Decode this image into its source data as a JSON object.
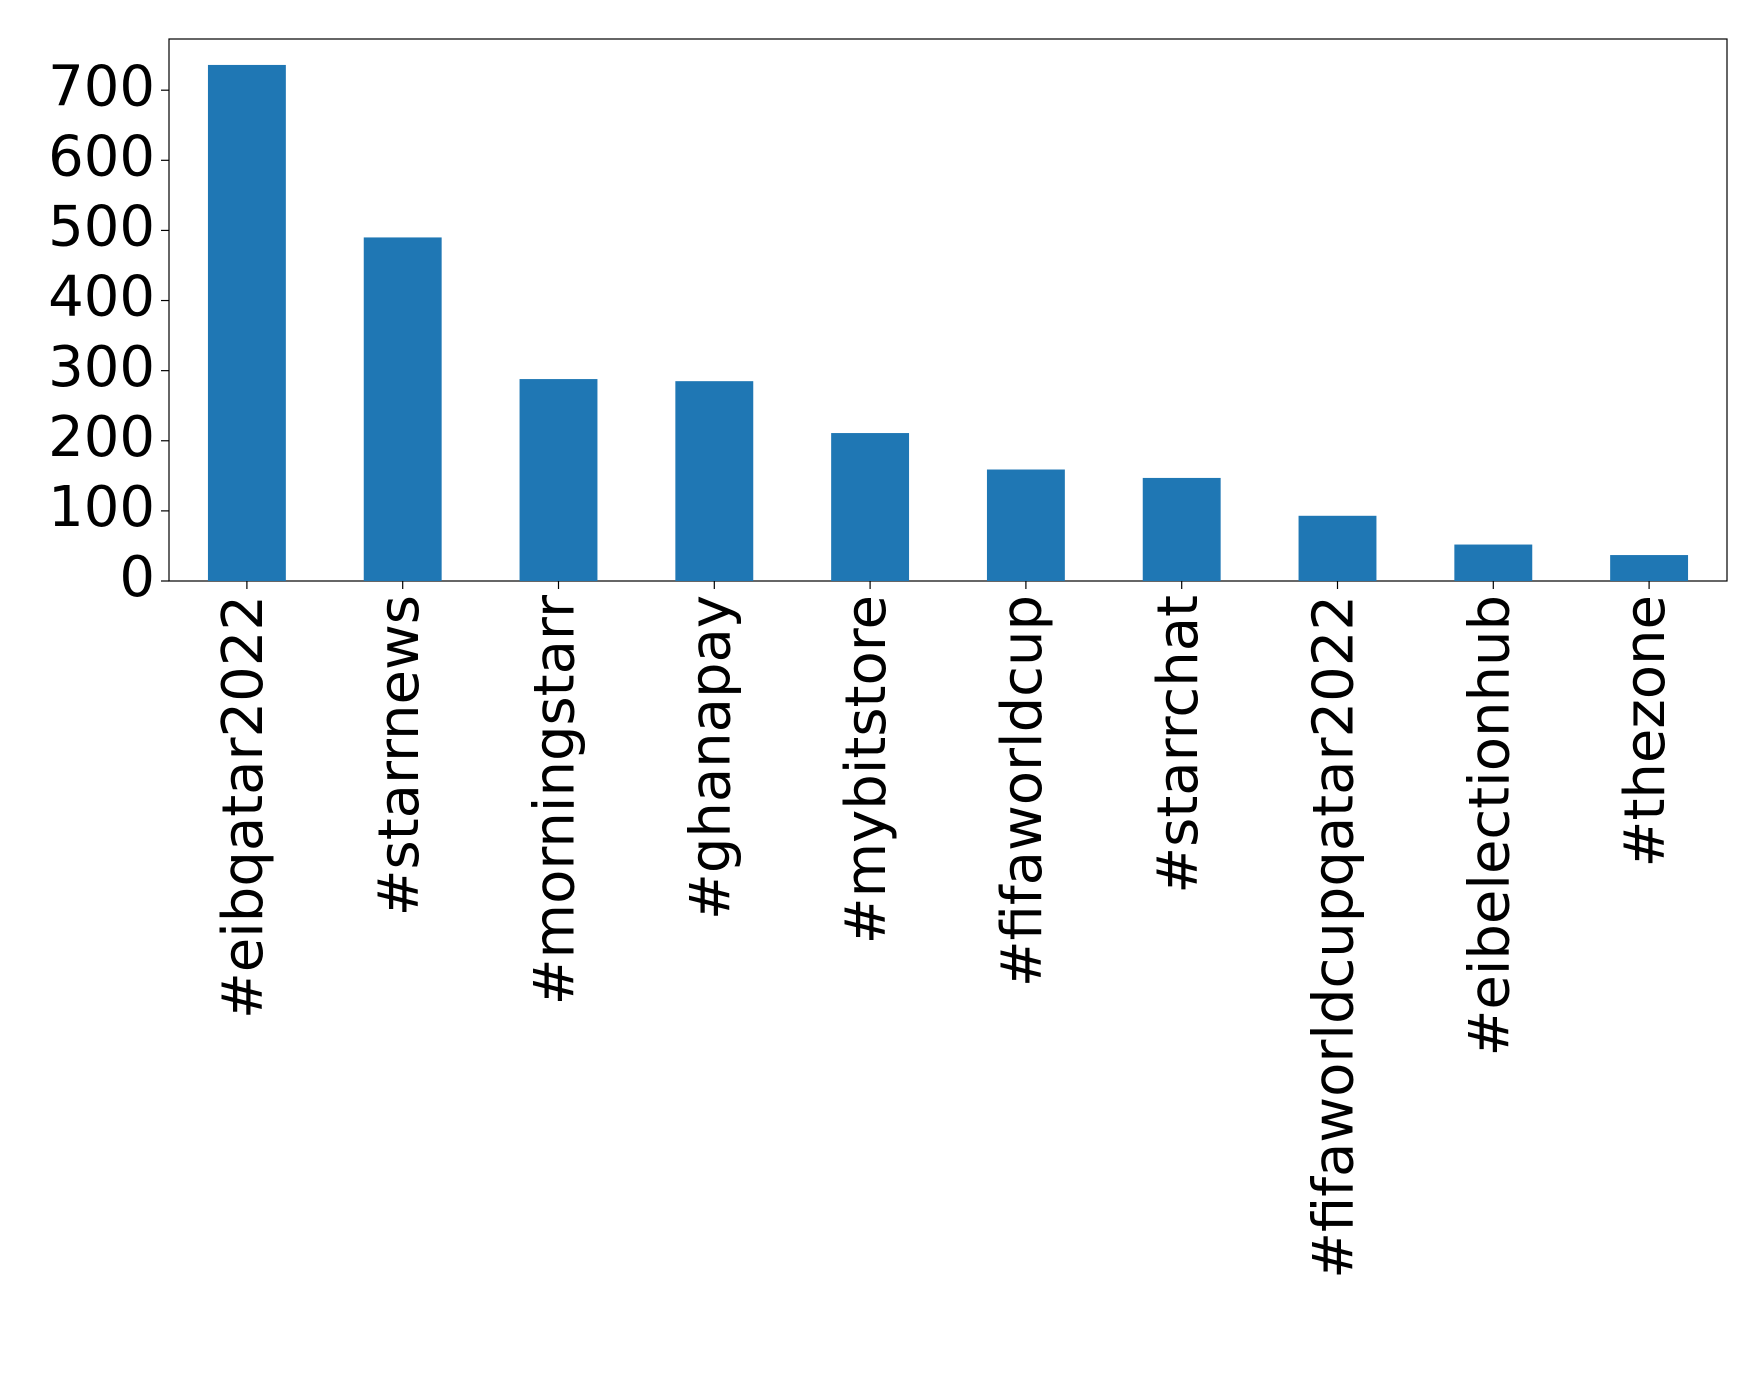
{
  "chart_data": {
    "type": "bar",
    "categories": [
      "#eibqatar2022",
      "#starrnews",
      "#morningstarr",
      "#ghanapay",
      "#mybitstore",
      "#fifaworldcup",
      "#starrchat",
      "#fifaworldcupqatar2022",
      "#eibelectionhub",
      "#thezone"
    ],
    "values": [
      736,
      490,
      288,
      285,
      211,
      159,
      147,
      93,
      52,
      37
    ],
    "color": "#1f77b4",
    "ylim": [
      0,
      773
    ],
    "yticks": [
      0,
      100,
      200,
      300,
      400,
      500,
      600,
      700
    ],
    "grid": false
  }
}
